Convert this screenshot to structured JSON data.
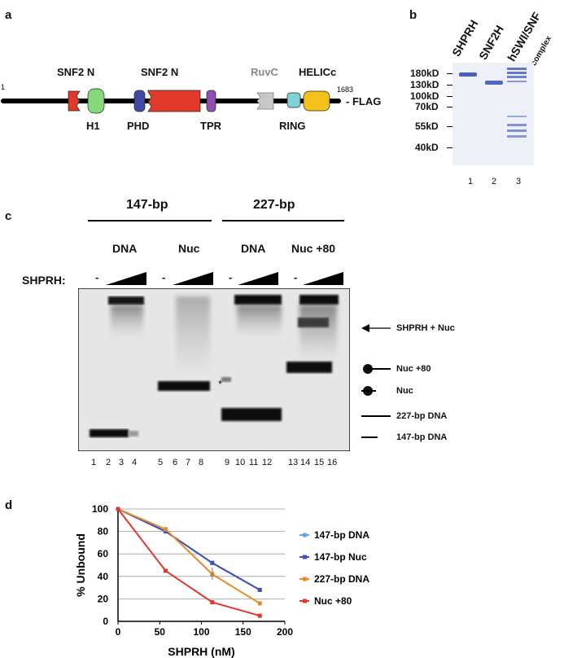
{
  "panels": {
    "a": "a",
    "b": "b",
    "c": "c",
    "d": "d"
  },
  "domain_map": {
    "start": "1",
    "end": "1683",
    "flag": "- FLAG",
    "top_labels": [
      "SNF2 N",
      "SNF2 N",
      "RuvC",
      "HELICc"
    ],
    "bottom_labels": [
      "H1",
      "PHD",
      "TPR",
      "RING"
    ],
    "colors": {
      "snf2": "#e23a2a",
      "h1": "#86d97a",
      "phd": "#3f4aa8",
      "tpr": "#8e4fb3",
      "ruvc": "#c8c8c8",
      "ring": "#7fd3d6",
      "helicc": "#f2c21b",
      "ruvc_text": "#888888"
    }
  },
  "gel_b": {
    "headers": [
      "SHPRH",
      "SNF2H",
      "hSWI/SNF",
      "complex"
    ],
    "markers": [
      "180kD",
      "130kD",
      "100kD",
      "70kD",
      "55kD",
      "40kD"
    ],
    "lanes": [
      "1",
      "2",
      "3"
    ],
    "band_color": "#5b6fc4"
  },
  "gel_c": {
    "groups": [
      "147-bp",
      "227-bp"
    ],
    "subgroups": [
      "DNA",
      "Nuc",
      "DNA",
      "Nuc +80"
    ],
    "protein_label": "SHPRH:",
    "minus": [
      "-",
      "-",
      "-",
      "-"
    ],
    "lanes": [
      "1",
      "2",
      "3",
      "4",
      "5",
      "6",
      "7",
      "8",
      "9",
      "10",
      "11",
      "12",
      "13",
      "14",
      "15",
      "16"
    ],
    "asterisk": "*",
    "legend": [
      "SHPRH + Nuc",
      "Nuc +80",
      "Nuc",
      "227-bp DNA",
      "147-bp DNA"
    ]
  },
  "chart_data": {
    "type": "line",
    "xlabel": "SHPRH (nM)",
    "ylabel": "% Unbound",
    "xlim": [
      0,
      200
    ],
    "ylim": [
      0,
      100
    ],
    "xticks": [
      0,
      50,
      100,
      150,
      200
    ],
    "yticks": [
      0,
      20,
      40,
      60,
      80,
      100
    ],
    "grid": "horizontal",
    "legend_position": "right",
    "series": [
      {
        "name": "147-bp DNA",
        "color": "#6aa3d8",
        "x": [
          0,
          57,
          113,
          170
        ],
        "y": [
          100,
          80,
          52,
          28
        ]
      },
      {
        "name": "147-bp  Nuc",
        "color": "#3f51b5",
        "x": [
          0,
          57,
          113,
          170
        ],
        "y": [
          100,
          80,
          52,
          28
        ]
      },
      {
        "name": "227-bp DNA",
        "color": "#e8892b",
        "x": [
          0,
          57,
          113,
          170
        ],
        "y": [
          100,
          82,
          42,
          16
        ]
      },
      {
        "name": "Nuc +80",
        "color": "#e0382b",
        "x": [
          0,
          57,
          113,
          170
        ],
        "y": [
          100,
          45,
          17,
          5
        ]
      }
    ]
  }
}
